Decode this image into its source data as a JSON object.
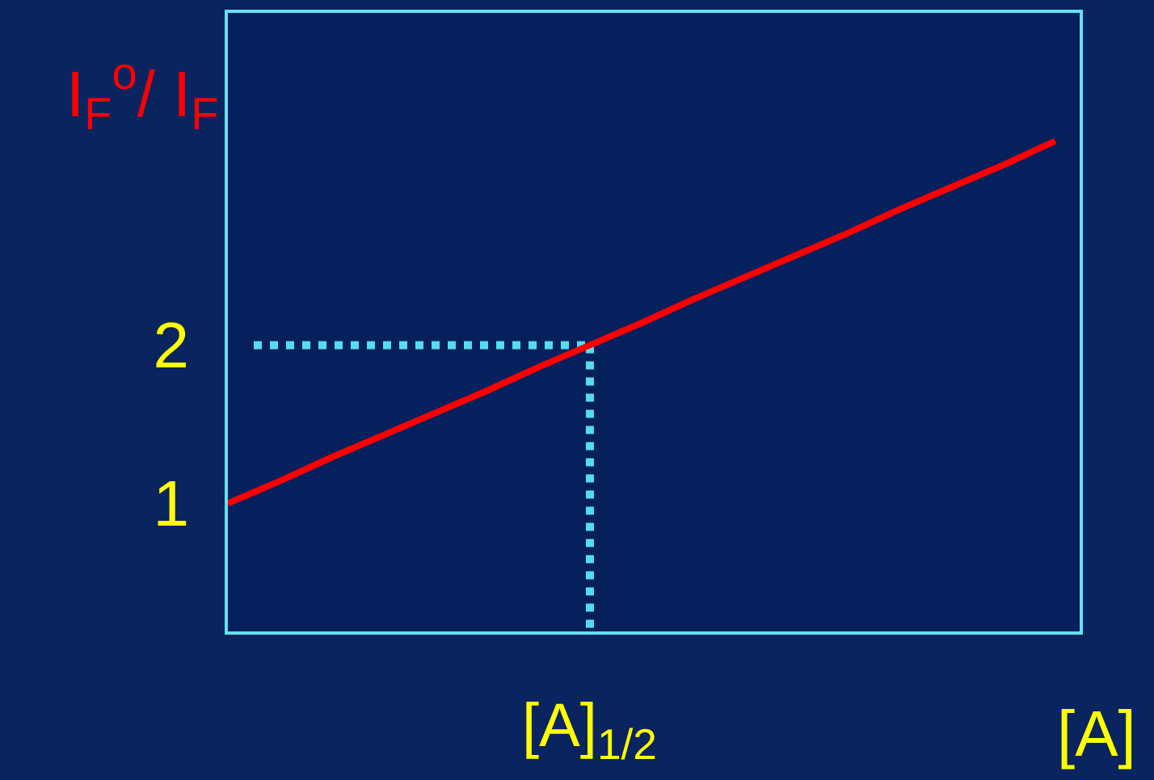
{
  "chart_data": {
    "type": "line",
    "ylabel": "I$_{F}$$^{o}$/ I$_{F}$",
    "xlabel": "[A]",
    "categories": [
      null,
      null,
      null,
      null,
      null,
      null,
      null,
      null,
      null,
      null,
      null,
      null,
      null,
      null,
      null,
      null,
      null
    ],
    "ylim": [
      0.19,
      4.1
    ],
    "yticks": [
      1,
      2
    ],
    "grid": false,
    "marker": "none",
    "line_style": "solid",
    "series": [
      {
        "color": "#ff0000",
        "values": [
          1,
          1.14,
          1.29,
          1.43,
          1.57,
          1.71,
          1.86,
          2,
          2.14,
          2.29,
          2.43,
          2.57,
          2.71,
          2.86,
          3,
          3.14,
          3.29
        ]
      }
    ],
    "ref_lines": [
      {
        "axis": "y",
        "value": 2,
        "label": "[A]$_{1/2}$",
        "color": "#55ddee",
        "line_style": "dotted"
      }
    ]
  }
}
